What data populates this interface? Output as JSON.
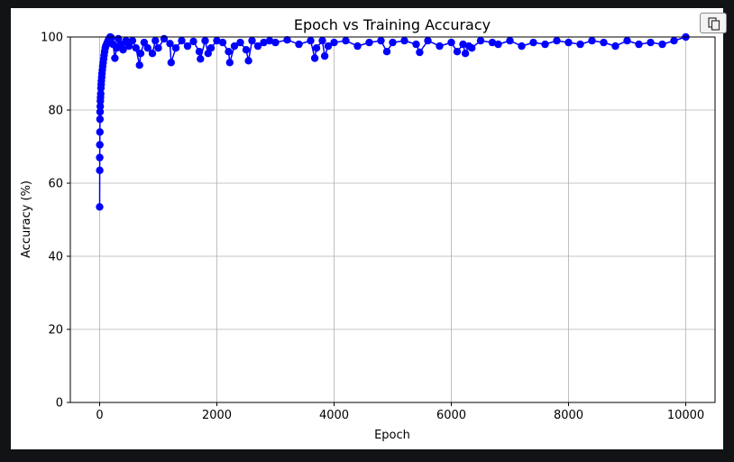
{
  "toolbar": {
    "copy_icon": "copy-icon"
  },
  "chart_data": {
    "type": "line",
    "title": "Epoch vs Training Accuracy",
    "xlabel": "Epoch",
    "ylabel": "Accuracy (%)",
    "xlim": [
      -500,
      10500
    ],
    "ylim": [
      0,
      100
    ],
    "xticks": [
      0,
      2000,
      4000,
      6000,
      8000,
      10000
    ],
    "yticks": [
      0,
      20,
      40,
      60,
      80,
      100
    ],
    "grid": true,
    "marker": "circle",
    "color": "#0000ff",
    "series": [
      {
        "x": [
          0,
          1,
          2,
          3,
          4,
          6,
          8,
          10,
          12,
          15,
          18,
          22,
          26,
          30,
          35,
          40,
          46,
          52,
          60,
          68,
          76,
          85,
          95,
          105,
          118,
          130,
          145,
          160,
          180,
          200,
          230,
          260,
          290,
          320,
          360,
          400,
          450,
          500,
          560,
          620,
          680,
          700,
          760,
          820,
          900,
          950,
          1000,
          1100,
          1200,
          1220,
          1300,
          1400,
          1500,
          1600,
          1700,
          1720,
          1800,
          1850,
          1900,
          2000,
          2100,
          2200,
          2220,
          2300,
          2400,
          2500,
          2540,
          2600,
          2700,
          2800,
          2900,
          3000,
          3200,
          3400,
          3600,
          3670,
          3700,
          3800,
          3840,
          3900,
          4000,
          4200,
          4400,
          4600,
          4800,
          4900,
          5000,
          5200,
          5400,
          5460,
          5600,
          5800,
          6000,
          6100,
          6200,
          6240,
          6300,
          6350,
          6500,
          6700,
          6800,
          7000,
          7200,
          7400,
          7600,
          7800,
          8000,
          8200,
          8400,
          8600,
          8800,
          9000,
          9200,
          9400,
          9600,
          9800,
          10000
        ],
        "y": [
          53.5,
          63.5,
          67,
          70.5,
          74,
          77.5,
          79.5,
          81,
          82.5,
          83.5,
          84.5,
          86,
          87,
          88,
          89,
          90,
          91,
          92,
          93,
          94,
          95,
          96,
          97,
          97.5,
          98,
          98.5,
          99,
          99.5,
          100,
          99.8,
          98,
          94.2,
          97,
          99.5,
          98,
          96.5,
          99,
          97.5,
          99,
          97,
          92.3,
          95.5,
          98.5,
          97,
          95.5,
          99,
          97,
          99.5,
          98.2,
          93,
          97,
          99,
          97.5,
          98.8,
          96,
          94,
          99,
          95.5,
          97,
          99,
          98.5,
          96,
          93,
          97.5,
          98.5,
          96.5,
          93.5,
          99,
          97.5,
          98.5,
          99,
          98.5,
          99.2,
          98,
          99,
          94.2,
          97,
          99,
          94.8,
          97.5,
          98.5,
          99,
          97.5,
          98.5,
          99,
          96,
          98.5,
          99,
          98,
          95.8,
          99,
          97.5,
          98.5,
          96,
          98,
          95.5,
          97.5,
          97,
          99,
          98.5,
          98,
          99,
          97.5,
          98.5,
          98,
          99,
          98.5,
          98,
          99,
          98.5,
          97.5,
          99,
          98,
          98.5,
          98,
          99,
          100
        ]
      }
    ]
  }
}
